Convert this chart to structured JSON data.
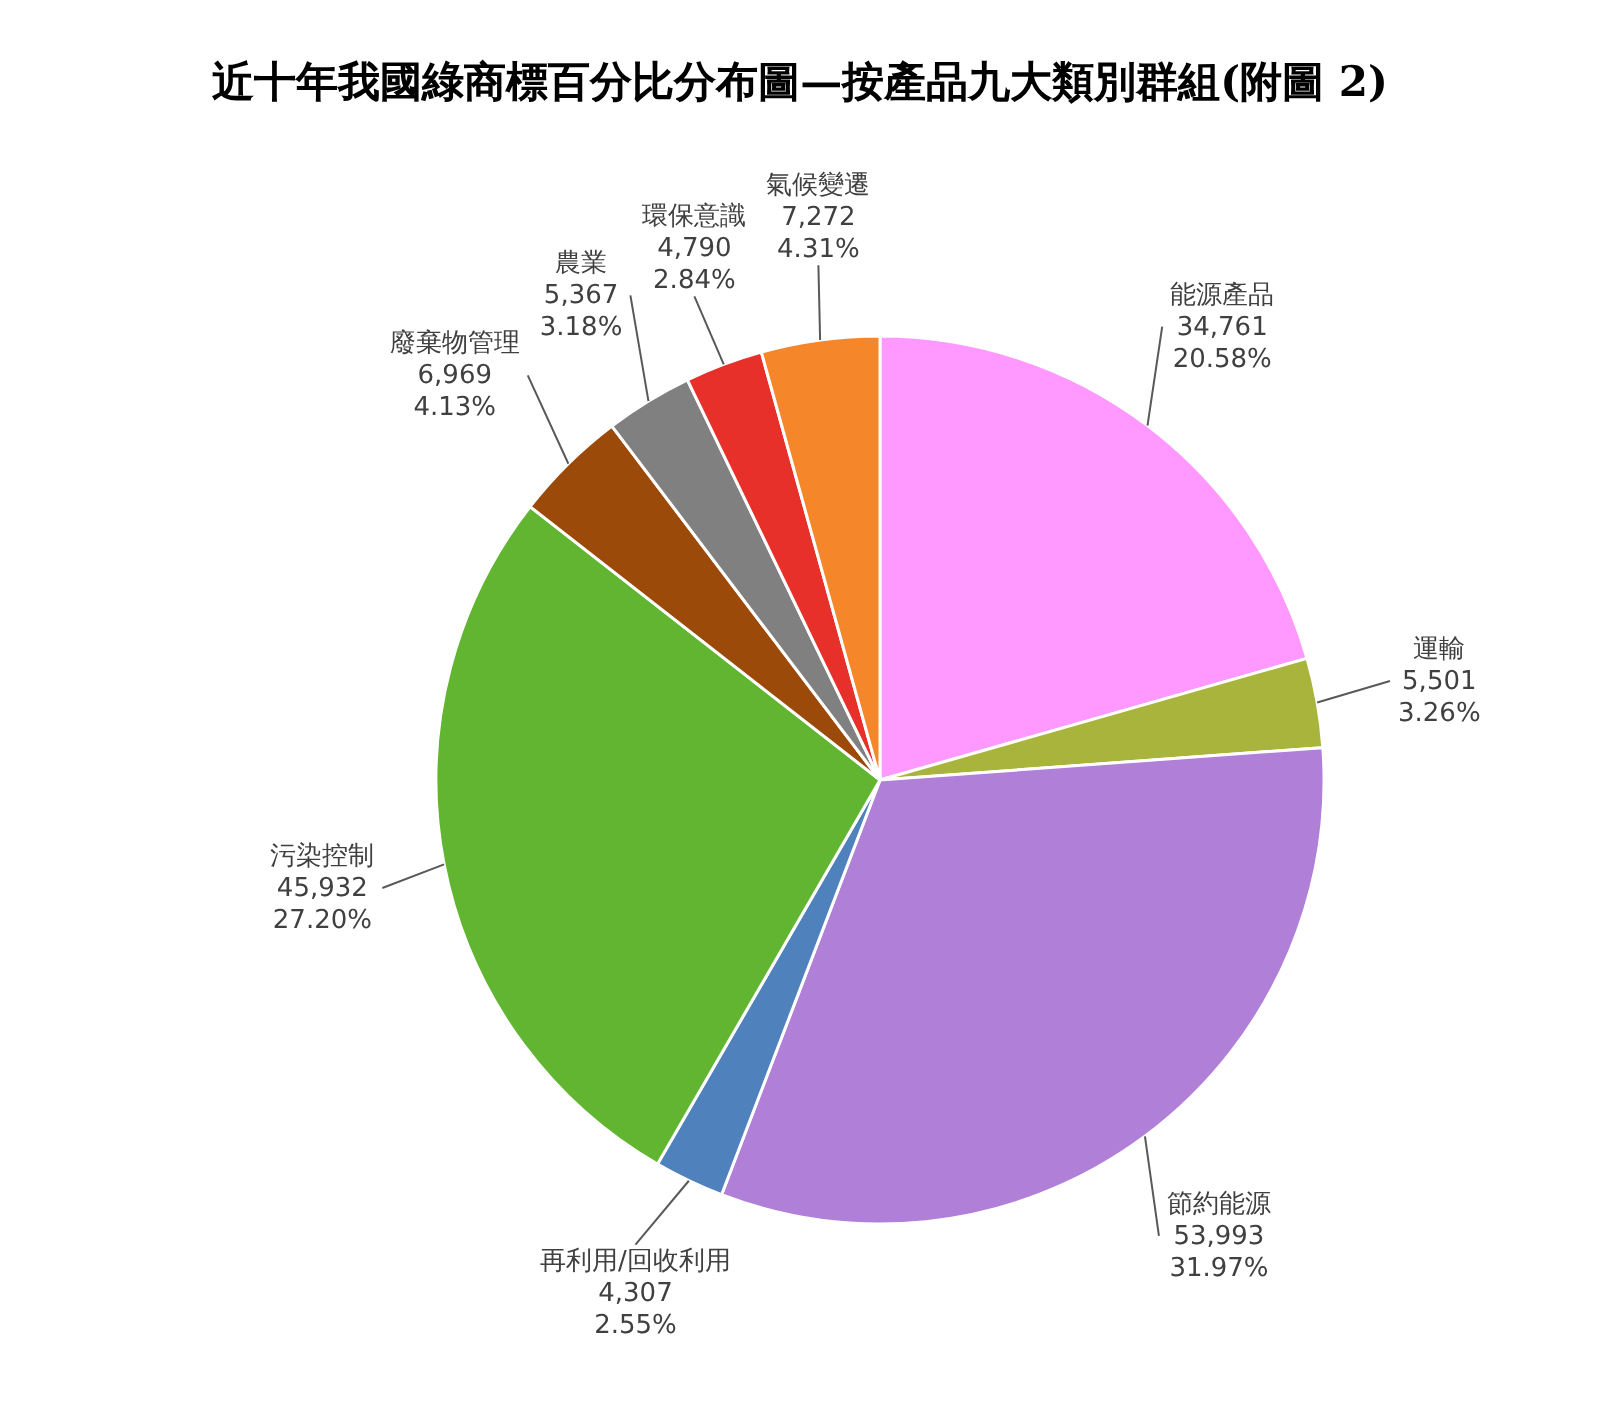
{
  "chart_data": {
    "type": "pie",
    "title": "近十年我國綠商標百分比分布圖—按產品九大類別群組(附圖 2)",
    "categories": [
      "能源產品",
      "運輸",
      "節約能源",
      "再利用/回收利用",
      "污染控制",
      "廢棄物管理",
      "農業",
      "環保意識",
      "氣候變遷"
    ],
    "values": [
      34761,
      5501,
      53993,
      4307,
      45932,
      6969,
      5367,
      4790,
      7272
    ],
    "colors": [
      "#ff99ff",
      "#a9b43c",
      "#b07fd8",
      "#4f81bd",
      "#62b530",
      "#9c4a0a",
      "#808080",
      "#e8302a",
      "#f5862a"
    ],
    "value_labels": [
      "34,761\n20.58%",
      "5,501\n3.26%",
      "53,993\n31.97%",
      "4,307\n2.55%",
      "45,932\n27.20%",
      "6,969\n4.13%",
      "5,367\n3.18%",
      "4,790\n2.84%",
      "7,272\n4.31%"
    ]
  }
}
